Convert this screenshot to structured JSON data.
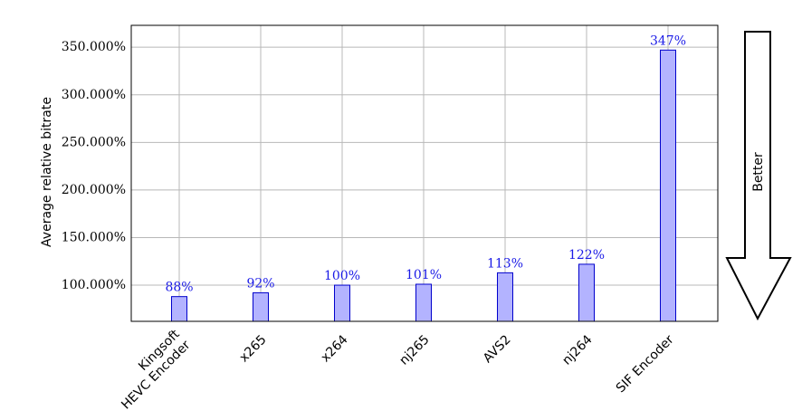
{
  "chart_data": {
    "type": "bar",
    "y_label": "Average relative bitrate",
    "annotation": "Better",
    "categories": [
      "Kingsoft\nHEVC Encoder",
      "x265",
      "x264",
      "nj265",
      "AVS2",
      "nj264",
      "SIF Encoder"
    ],
    "values": [
      88,
      92,
      100,
      101,
      113,
      122,
      347
    ],
    "value_labels": [
      "88%",
      "92%",
      "100%",
      "101%",
      "113%",
      "122%",
      "347%"
    ],
    "color": "#b3b3ff",
    "edge_color": "#0000cc",
    "label_color": "#1a1ae6",
    "ylim": [
      62,
      373
    ],
    "yticks": [
      {
        "value": 100,
        "label": "100.000%"
      },
      {
        "value": 150,
        "label": "150.000%"
      },
      {
        "value": 200,
        "label": "200.000%"
      },
      {
        "value": 250,
        "label": "250.000%"
      },
      {
        "value": 300,
        "label": "300.000%"
      },
      {
        "value": 350,
        "label": "350.000%"
      }
    ],
    "grid": true
  }
}
